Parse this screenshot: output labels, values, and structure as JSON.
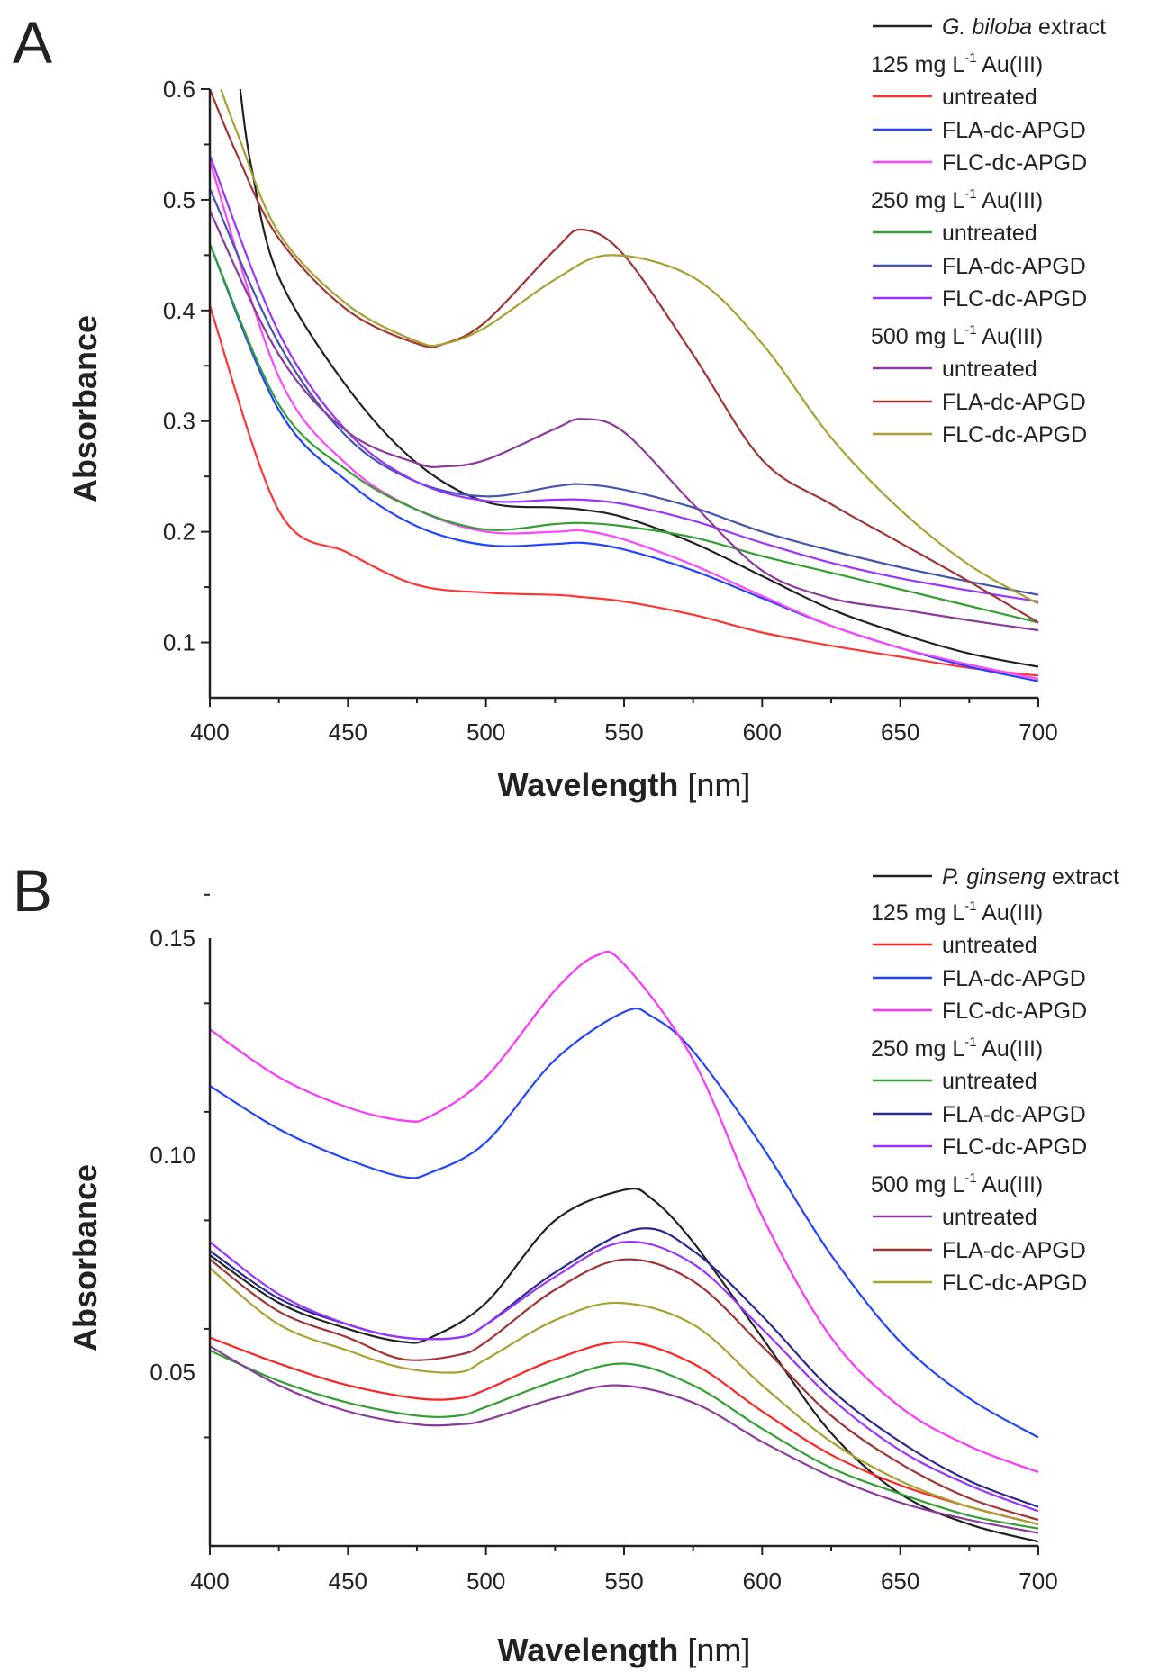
{
  "chart_data": [
    {
      "panel_label": "A",
      "type": "line",
      "xlabel": "Wavelength",
      "xlabel_unit": "[nm]",
      "ylabel": "Absorbance",
      "xlim": [
        400,
        700
      ],
      "ylim": [
        0.05,
        0.6
      ],
      "xticks": [
        400,
        450,
        500,
        550,
        600,
        650,
        700
      ],
      "yticks": [
        0.1,
        0.2,
        0.3,
        0.4,
        0.5,
        0.6
      ],
      "ytick_labels": [
        "0.1",
        "0.2",
        "0.3",
        "0.4",
        "0.5",
        "0.6"
      ],
      "grid": false,
      "legend_position": "top-right",
      "legend": [
        {
          "kind": "series",
          "series": 0,
          "italic": "G. biloba",
          "text": " extract"
        },
        {
          "kind": "header",
          "text": "125 mg L",
          "sup": "-1",
          "suffix": " Au(III)"
        },
        {
          "kind": "series",
          "series": 1,
          "text": "untreated"
        },
        {
          "kind": "series",
          "series": 2,
          "text": "FLA-dc-APGD"
        },
        {
          "kind": "series",
          "series": 3,
          "text": "FLC-dc-APGD"
        },
        {
          "kind": "header",
          "text": "250 mg L",
          "sup": "-1",
          "suffix": " Au(III)"
        },
        {
          "kind": "series",
          "series": 4,
          "text": "untreated"
        },
        {
          "kind": "series",
          "series": 5,
          "text": "FLA-dc-APGD"
        },
        {
          "kind": "series",
          "series": 6,
          "text": "FLC-dc-APGD"
        },
        {
          "kind": "header",
          "text": "500 mg L",
          "sup": "-1",
          "suffix": " Au(III)"
        },
        {
          "kind": "series",
          "series": 7,
          "text": "untreated"
        },
        {
          "kind": "series",
          "series": 8,
          "text": "FLA-dc-APGD"
        },
        {
          "kind": "series",
          "series": 9,
          "text": "FLC-dc-APGD"
        }
      ],
      "series": [
        {
          "name": "G. biloba extract",
          "color": "#222222",
          "x": [
            411,
            415,
            425,
            450,
            475,
            500,
            525,
            535,
            550,
            575,
            600,
            625,
            650,
            675,
            700
          ],
          "y": [
            0.6,
            0.53,
            0.43,
            0.33,
            0.262,
            0.227,
            0.222,
            0.22,
            0.213,
            0.19,
            0.16,
            0.13,
            0.108,
            0.09,
            0.078
          ]
        },
        {
          "name": "125 mg/L untreated",
          "color": "#ff3333",
          "x": [
            400,
            425,
            450,
            475,
            500,
            525,
            535,
            550,
            575,
            600,
            625,
            650,
            675,
            700
          ],
          "y": [
            0.404,
            0.219,
            0.181,
            0.152,
            0.145,
            0.143,
            0.141,
            0.137,
            0.125,
            0.109,
            0.097,
            0.087,
            0.077,
            0.07
          ]
        },
        {
          "name": "125 mg/L FLA-dc-APGD",
          "color": "#2244ff",
          "x": [
            400,
            425,
            450,
            475,
            500,
            525,
            535,
            550,
            575,
            600,
            625,
            650,
            675,
            700
          ],
          "y": [
            0.46,
            0.31,
            0.245,
            0.205,
            0.188,
            0.189,
            0.19,
            0.184,
            0.165,
            0.14,
            0.115,
            0.095,
            0.078,
            0.065
          ]
        },
        {
          "name": "125 mg/L FLC-dc-APGD",
          "color": "#ff44ff",
          "x": [
            400,
            425,
            450,
            475,
            500,
            525,
            535,
            550,
            575,
            600,
            625,
            650,
            675,
            700
          ],
          "y": [
            0.535,
            0.34,
            0.26,
            0.22,
            0.2,
            0.2,
            0.201,
            0.193,
            0.17,
            0.142,
            0.115,
            0.095,
            0.08,
            0.067
          ]
        },
        {
          "name": "250 mg/L untreated",
          "color": "#33a033",
          "x": [
            400,
            425,
            450,
            475,
            500,
            525,
            535,
            550,
            575,
            600,
            625,
            650,
            675,
            700
          ],
          "y": [
            0.46,
            0.315,
            0.255,
            0.22,
            0.202,
            0.207,
            0.208,
            0.205,
            0.195,
            0.178,
            0.163,
            0.148,
            0.133,
            0.118
          ]
        },
        {
          "name": "250 mg/L FLA-dc-APGD",
          "color": "#4455b0",
          "x": [
            400,
            425,
            450,
            475,
            500,
            525,
            535,
            550,
            575,
            600,
            625,
            650,
            675,
            700
          ],
          "y": [
            0.51,
            0.37,
            0.285,
            0.245,
            0.232,
            0.241,
            0.243,
            0.238,
            0.222,
            0.2,
            0.183,
            0.168,
            0.155,
            0.143
          ]
        },
        {
          "name": "250 mg/L FLC-dc-APGD",
          "color": "#9933ff",
          "x": [
            400,
            425,
            450,
            475,
            500,
            525,
            535,
            550,
            575,
            600,
            625,
            650,
            675,
            700
          ],
          "y": [
            0.54,
            0.38,
            0.29,
            0.245,
            0.228,
            0.229,
            0.229,
            0.225,
            0.21,
            0.19,
            0.172,
            0.158,
            0.147,
            0.137
          ]
        },
        {
          "name": "500 mg/L untreated",
          "color": "#8b3a9b",
          "x": [
            400,
            425,
            450,
            475,
            485,
            500,
            525,
            535,
            550,
            575,
            600,
            625,
            650,
            675,
            700
          ],
          "y": [
            0.49,
            0.36,
            0.29,
            0.262,
            0.259,
            0.265,
            0.293,
            0.302,
            0.29,
            0.225,
            0.165,
            0.14,
            0.13,
            0.12,
            0.111
          ]
        },
        {
          "name": "500 mg/L FLA-dc-APGD",
          "color": "#a03535",
          "x": [
            400,
            410,
            425,
            450,
            475,
            485,
            500,
            525,
            535,
            550,
            575,
            600,
            625,
            650,
            675,
            700
          ],
          "y": [
            0.6,
            0.54,
            0.465,
            0.4,
            0.37,
            0.37,
            0.39,
            0.455,
            0.473,
            0.45,
            0.36,
            0.265,
            0.225,
            0.19,
            0.155,
            0.118
          ]
        },
        {
          "name": "500 mg/L FLC-dc-APGD",
          "color": "#a8a030",
          "x": [
            404,
            410,
            425,
            450,
            475,
            485,
            500,
            525,
            545,
            575,
            600,
            625,
            650,
            675,
            700
          ],
          "y": [
            0.6,
            0.56,
            0.47,
            0.405,
            0.372,
            0.37,
            0.385,
            0.428,
            0.45,
            0.43,
            0.37,
            0.285,
            0.22,
            0.17,
            0.135
          ]
        }
      ]
    },
    {
      "panel_label": "B",
      "type": "line",
      "xlabel": "Wavelength",
      "xlabel_unit": "[nm]",
      "ylabel": "Absorbance",
      "xlim": [
        400,
        700
      ],
      "ylim": [
        0.01,
        0.15
      ],
      "xticks": [
        400,
        450,
        500,
        550,
        600,
        650,
        700
      ],
      "yticks": [
        0.05,
        0.1,
        0.15
      ],
      "ytick_labels": [
        "0.05",
        "0.10",
        "0.15"
      ],
      "grid": false,
      "legend_position": "top-right",
      "legend": [
        {
          "kind": "series",
          "series": 0,
          "italic": "P. ginseng",
          "text": " extract"
        },
        {
          "kind": "header",
          "text": "125 mg L",
          "sup": "-1",
          "suffix": " Au(III)"
        },
        {
          "kind": "series",
          "series": 1,
          "text": "untreated"
        },
        {
          "kind": "series",
          "series": 2,
          "text": "FLA-dc-APGD"
        },
        {
          "kind": "series",
          "series": 3,
          "text": "FLC-dc-APGD"
        },
        {
          "kind": "header",
          "text": "250 mg L",
          "sup": "-1",
          "suffix": " Au(III)"
        },
        {
          "kind": "series",
          "series": 4,
          "text": "untreated"
        },
        {
          "kind": "series",
          "series": 5,
          "text": "FLA-dc-APGD"
        },
        {
          "kind": "series",
          "series": 6,
          "text": "FLC-dc-APGD"
        },
        {
          "kind": "header",
          "text": "500 mg L",
          "sup": "-1",
          "suffix": " Au(III)"
        },
        {
          "kind": "series",
          "series": 7,
          "text": "untreated"
        },
        {
          "kind": "series",
          "series": 8,
          "text": "FLA-dc-APGD"
        },
        {
          "kind": "series",
          "series": 9,
          "text": "FLC-dc-APGD"
        }
      ],
      "series": [
        {
          "name": "P. ginseng extract",
          "color": "#222222",
          "x": [
            400,
            425,
            450,
            470,
            480,
            500,
            525,
            550,
            560,
            575,
            600,
            625,
            650,
            675,
            700
          ],
          "y": [
            0.077,
            0.066,
            0.06,
            0.057,
            0.058,
            0.066,
            0.085,
            0.092,
            0.09,
            0.08,
            0.058,
            0.036,
            0.022,
            0.015,
            0.011
          ]
        },
        {
          "name": "125 mg/L untreated",
          "color": "#ff2222",
          "x": [
            400,
            425,
            450,
            475,
            490,
            500,
            525,
            550,
            575,
            600,
            625,
            650,
            675,
            700
          ],
          "y": [
            0.058,
            0.052,
            0.047,
            0.044,
            0.044,
            0.046,
            0.053,
            0.057,
            0.052,
            0.041,
            0.031,
            0.024,
            0.019,
            0.015
          ]
        },
        {
          "name": "125 mg/L FLA-dc-APGD",
          "color": "#2244ff",
          "x": [
            400,
            425,
            450,
            470,
            480,
            500,
            525,
            550,
            560,
            575,
            600,
            625,
            650,
            675,
            700
          ],
          "y": [
            0.116,
            0.106,
            0.099,
            0.095,
            0.096,
            0.103,
            0.122,
            0.133,
            0.132,
            0.124,
            0.102,
            0.077,
            0.057,
            0.044,
            0.035
          ]
        },
        {
          "name": "125 mg/L FLC-dc-APGD",
          "color": "#ff33ff",
          "x": [
            400,
            425,
            450,
            470,
            480,
            500,
            525,
            540,
            550,
            575,
            600,
            625,
            650,
            675,
            700
          ],
          "y": [
            0.129,
            0.118,
            0.111,
            0.108,
            0.109,
            0.118,
            0.138,
            0.146,
            0.144,
            0.122,
            0.086,
            0.058,
            0.042,
            0.033,
            0.027
          ]
        },
        {
          "name": "250 mg/L untreated",
          "color": "#33a033",
          "x": [
            400,
            425,
            450,
            475,
            490,
            500,
            525,
            550,
            575,
            600,
            625,
            650,
            675,
            700
          ],
          "y": [
            0.055,
            0.048,
            0.043,
            0.04,
            0.04,
            0.042,
            0.048,
            0.052,
            0.047,
            0.037,
            0.028,
            0.022,
            0.017,
            0.014
          ]
        },
        {
          "name": "250 mg/L FLA-dc-APGD",
          "color": "#2a2a90",
          "x": [
            400,
            425,
            450,
            470,
            490,
            500,
            525,
            555,
            575,
            600,
            625,
            650,
            675,
            700
          ],
          "y": [
            0.078,
            0.067,
            0.061,
            0.058,
            0.058,
            0.061,
            0.073,
            0.083,
            0.078,
            0.063,
            0.046,
            0.034,
            0.025,
            0.019
          ]
        },
        {
          "name": "250 mg/L FLC-dc-APGD",
          "color": "#9933ff",
          "x": [
            400,
            425,
            450,
            470,
            490,
            500,
            525,
            550,
            575,
            600,
            625,
            650,
            675,
            700
          ],
          "y": [
            0.08,
            0.068,
            0.061,
            0.058,
            0.058,
            0.061,
            0.072,
            0.08,
            0.075,
            0.06,
            0.044,
            0.032,
            0.024,
            0.018
          ]
        },
        {
          "name": "500 mg/L untreated",
          "color": "#8b3a9b",
          "x": [
            400,
            425,
            450,
            475,
            490,
            500,
            525,
            548,
            575,
            600,
            625,
            650,
            675,
            700
          ],
          "y": [
            0.056,
            0.047,
            0.041,
            0.038,
            0.038,
            0.039,
            0.044,
            0.047,
            0.043,
            0.034,
            0.026,
            0.02,
            0.016,
            0.013
          ]
        },
        {
          "name": "500 mg/L FLA-dc-APGD",
          "color": "#a03535",
          "x": [
            400,
            425,
            450,
            470,
            490,
            500,
            525,
            550,
            575,
            600,
            625,
            650,
            675,
            700
          ],
          "y": [
            0.076,
            0.064,
            0.058,
            0.053,
            0.054,
            0.057,
            0.069,
            0.076,
            0.071,
            0.056,
            0.04,
            0.029,
            0.021,
            0.016
          ]
        },
        {
          "name": "500 mg/L FLC-dc-APGD",
          "color": "#a8a030",
          "x": [
            400,
            425,
            450,
            470,
            490,
            500,
            525,
            548,
            575,
            600,
            625,
            650,
            675,
            700
          ],
          "y": [
            0.074,
            0.061,
            0.055,
            0.051,
            0.05,
            0.053,
            0.062,
            0.066,
            0.061,
            0.047,
            0.034,
            0.025,
            0.019,
            0.015
          ]
        }
      ]
    }
  ]
}
